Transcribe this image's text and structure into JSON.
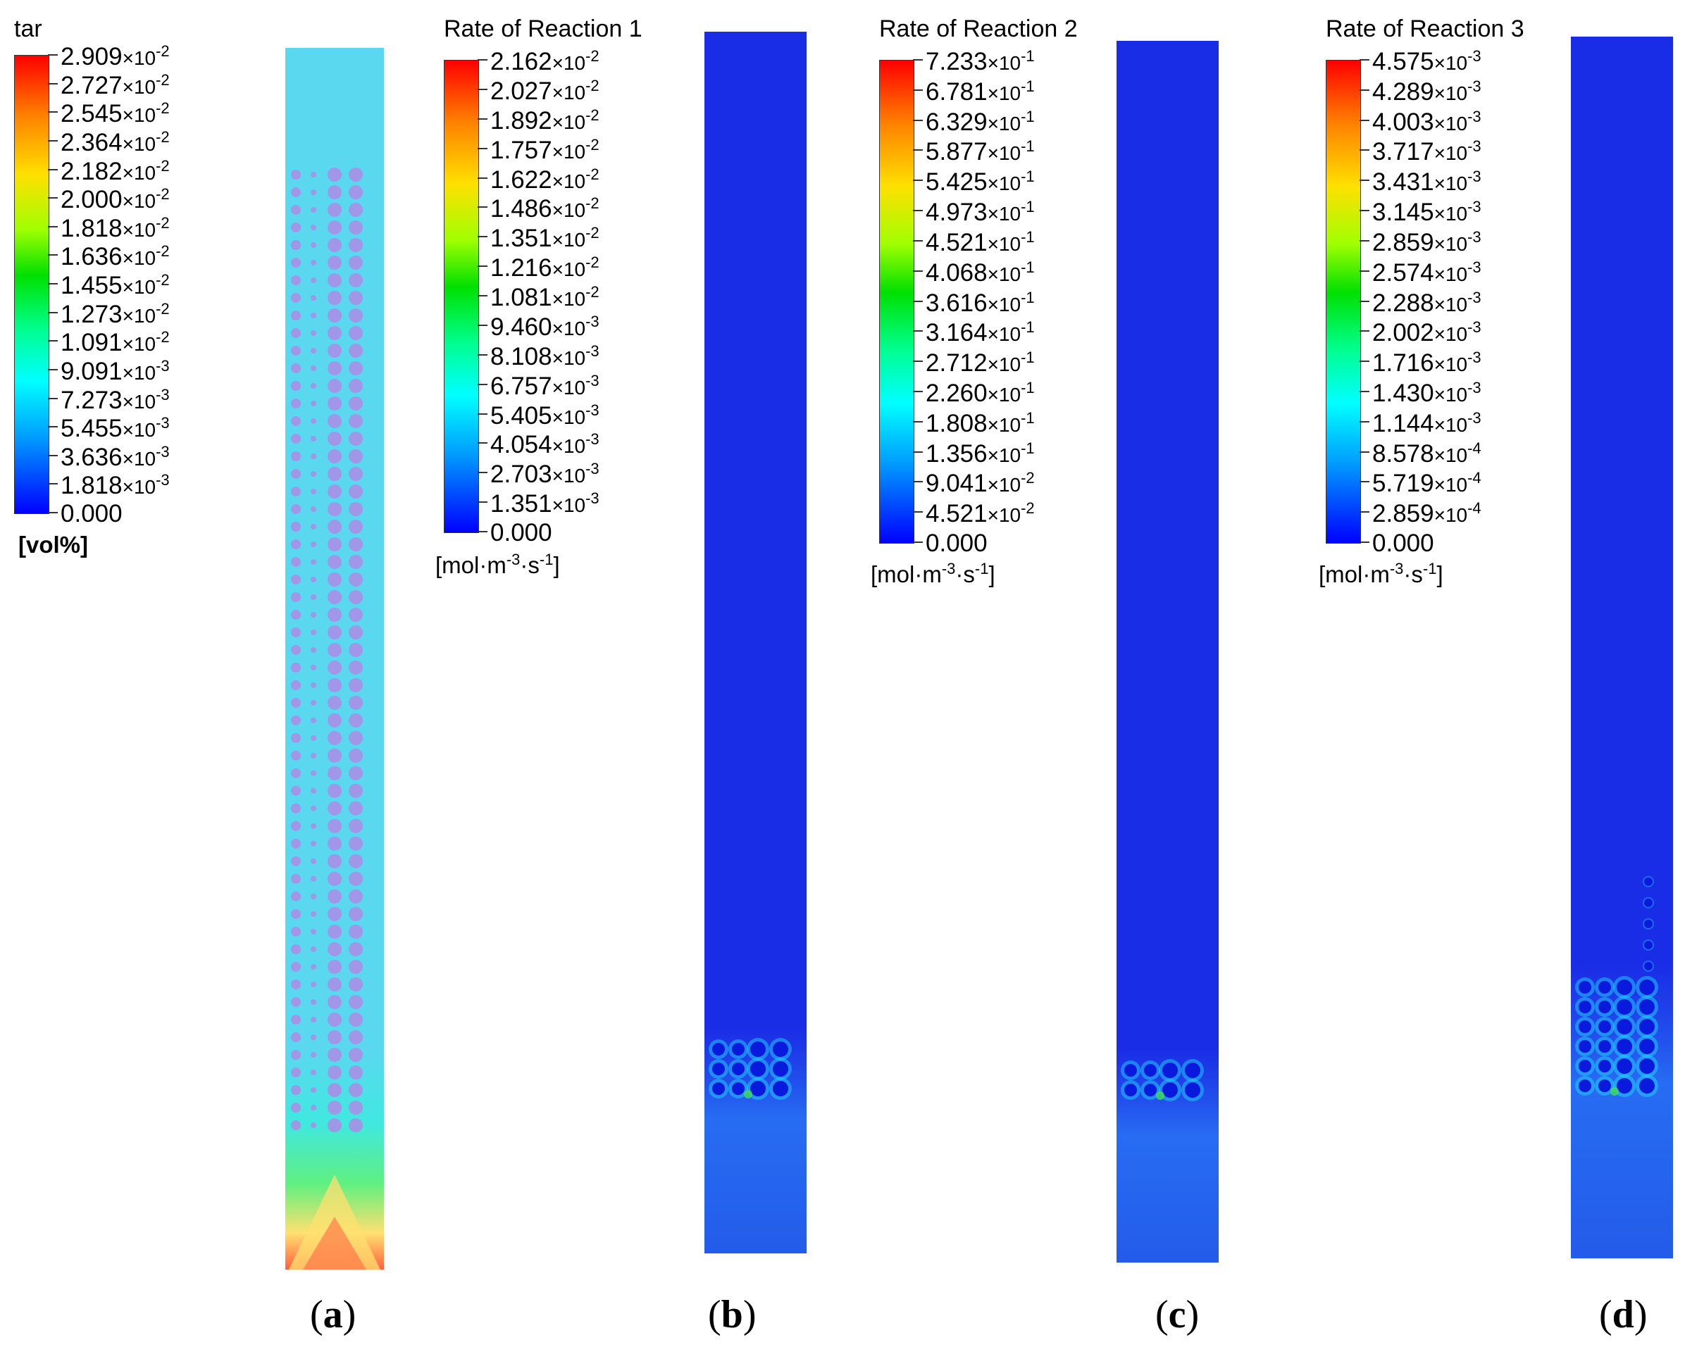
{
  "panels": [
    {
      "id": "a",
      "legend_title": "tar",
      "ticks": [
        [
          "2.909",
          "-2"
        ],
        [
          "2.727",
          "-2"
        ],
        [
          "2.545",
          "-2"
        ],
        [
          "2.364",
          "-2"
        ],
        [
          "2.182",
          "-2"
        ],
        [
          "2.000",
          "-2"
        ],
        [
          "1.818",
          "-2"
        ],
        [
          "1.636",
          "-2"
        ],
        [
          "1.455",
          "-2"
        ],
        [
          "1.273",
          "-2"
        ],
        [
          "1.091",
          "-2"
        ],
        [
          "9.091",
          "-3"
        ],
        [
          "7.273",
          "-3"
        ],
        [
          "5.455",
          "-3"
        ],
        [
          "3.636",
          "-3"
        ],
        [
          "1.818",
          "-3"
        ],
        [
          "0.000",
          ""
        ]
      ],
      "unit": "[vol%]",
      "label_open": "(",
      "label_letter": "a",
      "label_close": ")"
    },
    {
      "id": "b",
      "legend_title": "Rate of Reaction 1",
      "ticks": [
        [
          "2.162",
          "-2"
        ],
        [
          "2.027",
          "-2"
        ],
        [
          "1.892",
          "-2"
        ],
        [
          "1.757",
          "-2"
        ],
        [
          "1.622",
          "-2"
        ],
        [
          "1.486",
          "-2"
        ],
        [
          "1.351",
          "-2"
        ],
        [
          "1.216",
          "-2"
        ],
        [
          "1.081",
          "-2"
        ],
        [
          "9.460",
          "-3"
        ],
        [
          "8.108",
          "-3"
        ],
        [
          "6.757",
          "-3"
        ],
        [
          "5.405",
          "-3"
        ],
        [
          "4.054",
          "-3"
        ],
        [
          "2.703",
          "-3"
        ],
        [
          "1.351",
          "-3"
        ],
        [
          "0.000",
          ""
        ]
      ],
      "unit": "[mol·m-3·s-1]",
      "label_open": "(",
      "label_letter": "b",
      "label_close": ")"
    },
    {
      "id": "c",
      "legend_title": "Rate of Reaction 2",
      "ticks": [
        [
          "7.233",
          "-1"
        ],
        [
          "6.781",
          "-1"
        ],
        [
          "6.329",
          "-1"
        ],
        [
          "5.877",
          "-1"
        ],
        [
          "5.425",
          "-1"
        ],
        [
          "4.973",
          "-1"
        ],
        [
          "4.521",
          "-1"
        ],
        [
          "4.068",
          "-1"
        ],
        [
          "3.616",
          "-1"
        ],
        [
          "3.164",
          "-1"
        ],
        [
          "2.712",
          "-1"
        ],
        [
          "2.260",
          "-1"
        ],
        [
          "1.808",
          "-1"
        ],
        [
          "1.356",
          "-1"
        ],
        [
          "9.041",
          "-2"
        ],
        [
          "4.521",
          "-2"
        ],
        [
          "0.000",
          ""
        ]
      ],
      "unit": "[mol·m-3·s-1]",
      "label_open": "(",
      "label_letter": "c",
      "label_close": ")"
    },
    {
      "id": "d",
      "legend_title": "Rate of Reaction 3",
      "ticks": [
        [
          "4.575",
          "-3"
        ],
        [
          "4.289",
          "-3"
        ],
        [
          "4.003",
          "-3"
        ],
        [
          "3.717",
          "-3"
        ],
        [
          "3.431",
          "-3"
        ],
        [
          "3.145",
          "-3"
        ],
        [
          "2.859",
          "-3"
        ],
        [
          "2.574",
          "-3"
        ],
        [
          "2.288",
          "-3"
        ],
        [
          "2.002",
          "-3"
        ],
        [
          "1.716",
          "-3"
        ],
        [
          "1.430",
          "-3"
        ],
        [
          "1.144",
          "-3"
        ],
        [
          "8.578",
          "-4"
        ],
        [
          "5.719",
          "-4"
        ],
        [
          "2.859",
          "-4"
        ],
        [
          "0.000",
          ""
        ]
      ],
      "unit": "[mol·m-3·s-1]",
      "label_open": "(",
      "label_letter": "d",
      "label_close": ")"
    }
  ],
  "colors": {
    "tar_background": "#5ad8f0",
    "tar_particle": "#a98fe6",
    "rate_background": "#1a2de6",
    "hot_red": "#ff6040",
    "hot_yellow": "#ffe070",
    "hot_green": "#40e050",
    "cyan": "#20e0ff"
  },
  "times_symbol": "×10"
}
